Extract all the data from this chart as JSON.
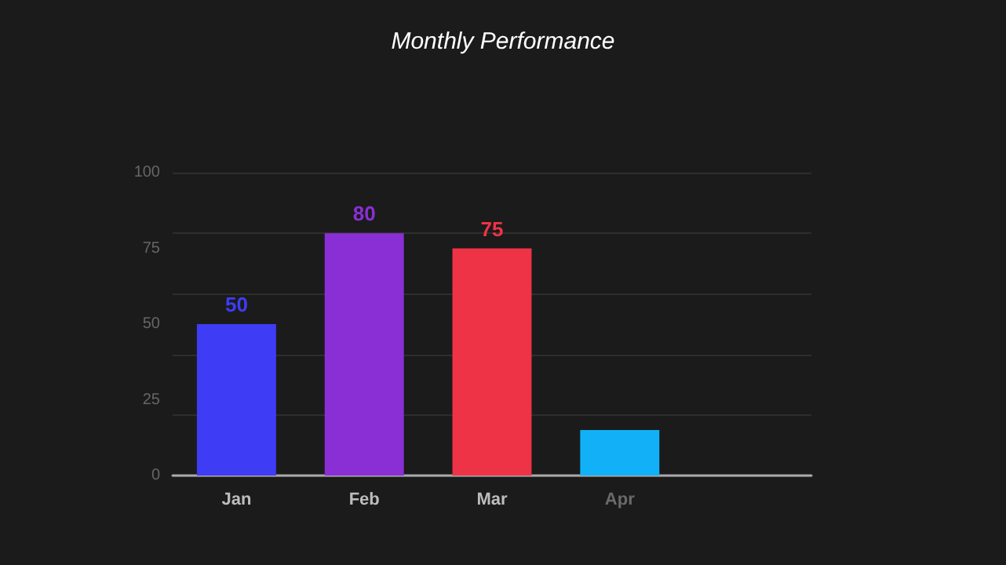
{
  "chart_data": {
    "type": "bar",
    "title": "Monthly Performance",
    "categories": [
      "Jan",
      "Feb",
      "Mar",
      "Apr",
      null
    ],
    "values": [
      50,
      80,
      75,
      15,
      null
    ],
    "colors": [
      "#3f3cf5",
      "#8a2fd6",
      "#ee3346",
      "#12b1f7",
      "#888888"
    ],
    "value_labels": [
      "50",
      "80",
      "75",
      null,
      null
    ],
    "ylim": [
      0,
      100
    ],
    "yticks": [
      0,
      25,
      50,
      75,
      100
    ],
    "grid": "y"
  }
}
